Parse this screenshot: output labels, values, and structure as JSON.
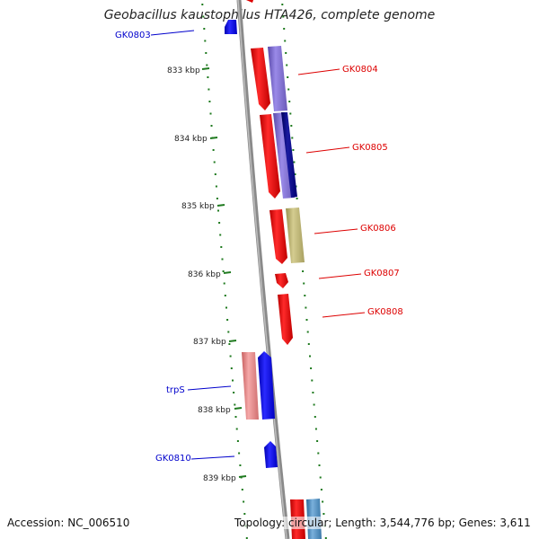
{
  "title": "Geobacillus kaustophilus HTA426, complete genome",
  "accession": {
    "label": "Accession:",
    "value": "NC_006510"
  },
  "topology": {
    "label": "Topology:",
    "value": "circular",
    "length_label": "Length:",
    "length": "3,544,776 bp",
    "genes_label": "Genes:",
    "genes": "3,611"
  },
  "ticks": [
    "833 kbp",
    "834 kbp",
    "835 kbp",
    "836 kbp",
    "837 kbp",
    "838 kbp",
    "839 kbp"
  ],
  "genes": [
    {
      "name": "GK0803",
      "strand": "reverse",
      "color": "#0000cc"
    },
    {
      "name": "GK0804",
      "strand": "forward",
      "color": "#dd0000"
    },
    {
      "name": "GK0805",
      "strand": "forward",
      "color": "#dd0000"
    },
    {
      "name": "GK0806",
      "strand": "forward",
      "color": "#dd0000"
    },
    {
      "name": "GK0807",
      "strand": "forward",
      "color": "#dd0000"
    },
    {
      "name": "GK0808",
      "strand": "forward",
      "color": "#dd0000"
    },
    {
      "name": "trpS",
      "strand": "reverse",
      "color": "#0000cc"
    },
    {
      "name": "GK0810",
      "strand": "reverse",
      "color": "#0000cc"
    }
  ],
  "colors": {
    "backbone": "#8a8a8a",
    "tick_dots": "#1f7a1f",
    "forward_gene": "#ee0000",
    "reverse_gene": "#0000ee",
    "feature_purple": "#7766cc",
    "feature_navy": "#000080",
    "feature_olive": "#b8b070",
    "feature_pink": "#e88888",
    "feature_steel": "#4a86b8"
  }
}
